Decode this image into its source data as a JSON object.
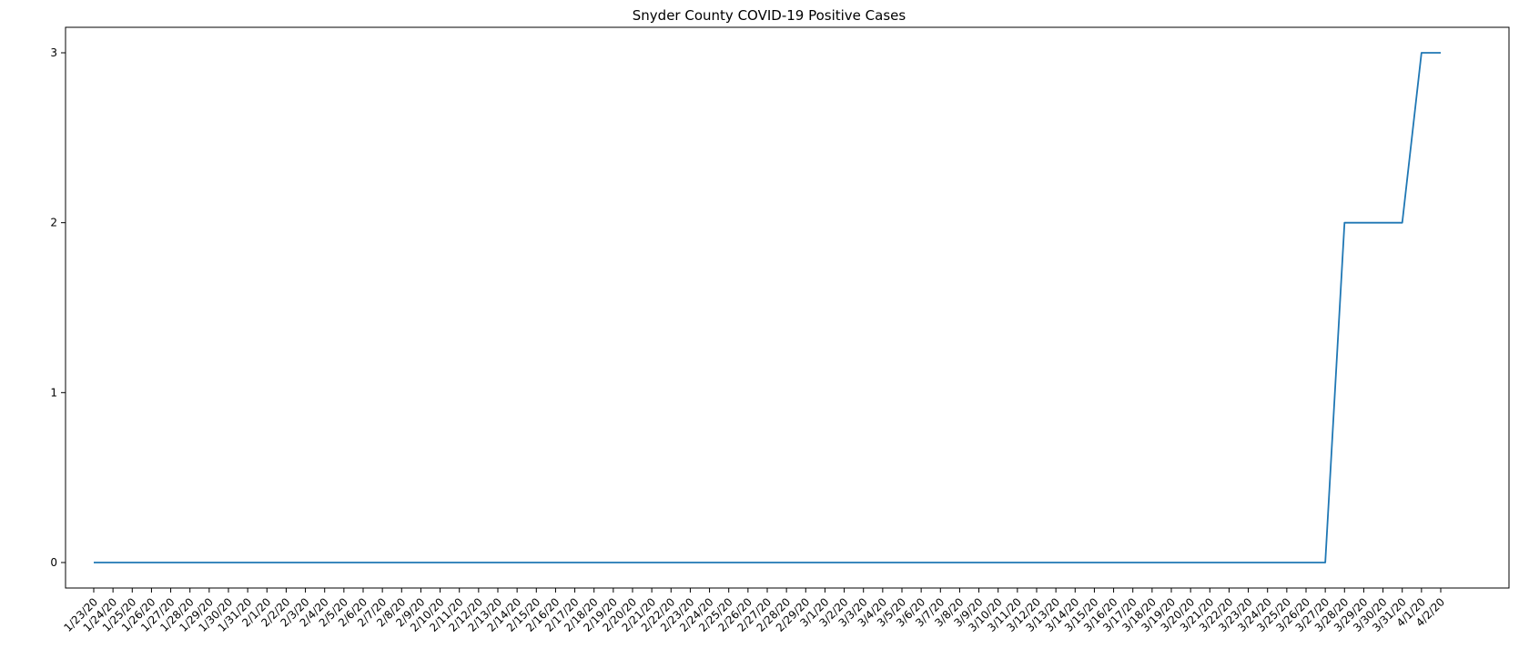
{
  "chart_data": {
    "type": "line",
    "title": "Snyder County COVID-19 Positive Cases",
    "xlabel": "",
    "ylabel": "",
    "x": [
      "1/23/20",
      "1/24/20",
      "1/25/20",
      "1/26/20",
      "1/27/20",
      "1/28/20",
      "1/29/20",
      "1/30/20",
      "1/31/20",
      "2/1/20",
      "2/2/20",
      "2/3/20",
      "2/4/20",
      "2/5/20",
      "2/6/20",
      "2/7/20",
      "2/8/20",
      "2/9/20",
      "2/10/20",
      "2/11/20",
      "2/12/20",
      "2/13/20",
      "2/14/20",
      "2/15/20",
      "2/16/20",
      "2/17/20",
      "2/18/20",
      "2/19/20",
      "2/20/20",
      "2/21/20",
      "2/22/20",
      "2/23/20",
      "2/24/20",
      "2/25/20",
      "2/26/20",
      "2/27/20",
      "2/28/20",
      "2/29/20",
      "3/1/20",
      "3/2/20",
      "3/3/20",
      "3/4/20",
      "3/5/20",
      "3/6/20",
      "3/7/20",
      "3/8/20",
      "3/9/20",
      "3/10/20",
      "3/11/20",
      "3/12/20",
      "3/13/20",
      "3/14/20",
      "3/15/20",
      "3/16/20",
      "3/17/20",
      "3/18/20",
      "3/19/20",
      "3/20/20",
      "3/21/20",
      "3/22/20",
      "3/23/20",
      "3/24/20",
      "3/25/20",
      "3/26/20",
      "3/27/20",
      "3/28/20",
      "3/29/20",
      "3/30/20",
      "3/31/20",
      "4/1/20",
      "4/2/20"
    ],
    "series": [
      {
        "values": [
          0,
          0,
          0,
          0,
          0,
          0,
          0,
          0,
          0,
          0,
          0,
          0,
          0,
          0,
          0,
          0,
          0,
          0,
          0,
          0,
          0,
          0,
          0,
          0,
          0,
          0,
          0,
          0,
          0,
          0,
          0,
          0,
          0,
          0,
          0,
          0,
          0,
          0,
          0,
          0,
          0,
          0,
          0,
          0,
          0,
          0,
          0,
          0,
          0,
          0,
          0,
          0,
          0,
          0,
          0,
          0,
          0,
          0,
          0,
          0,
          0,
          0,
          0,
          0,
          0,
          2,
          2,
          2,
          2,
          3,
          3
        ],
        "color": "#1f77b4"
      }
    ],
    "yticks": [
      0,
      1,
      2,
      3
    ],
    "ylim": [
      -0.15,
      3.15
    ],
    "grid": false,
    "legend": "none"
  }
}
